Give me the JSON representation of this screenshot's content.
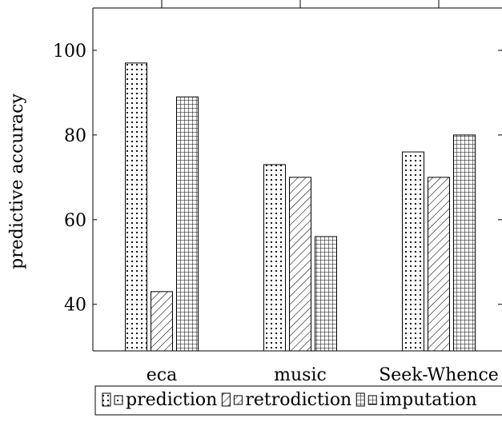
{
  "chart_data": {
    "type": "bar",
    "ylabel": "predictive accuracy",
    "xlabel": "",
    "title": "",
    "ylim": [
      29,
      110
    ],
    "yticks": [
      40,
      60,
      80,
      100
    ],
    "grid": false,
    "legend_position": "bottom",
    "categories": [
      "eca",
      "music",
      "Seek-Whence"
    ],
    "series": [
      {
        "name": "prediction",
        "pattern": "dots",
        "values": [
          97,
          73,
          76
        ]
      },
      {
        "name": "retrodiction",
        "pattern": "diagonal",
        "values": [
          43,
          70,
          70
        ]
      },
      {
        "name": "imputation",
        "pattern": "grid",
        "values": [
          89,
          56,
          80
        ]
      }
    ]
  },
  "colors": {
    "ink": "#000000",
    "background": "#ffffff"
  }
}
